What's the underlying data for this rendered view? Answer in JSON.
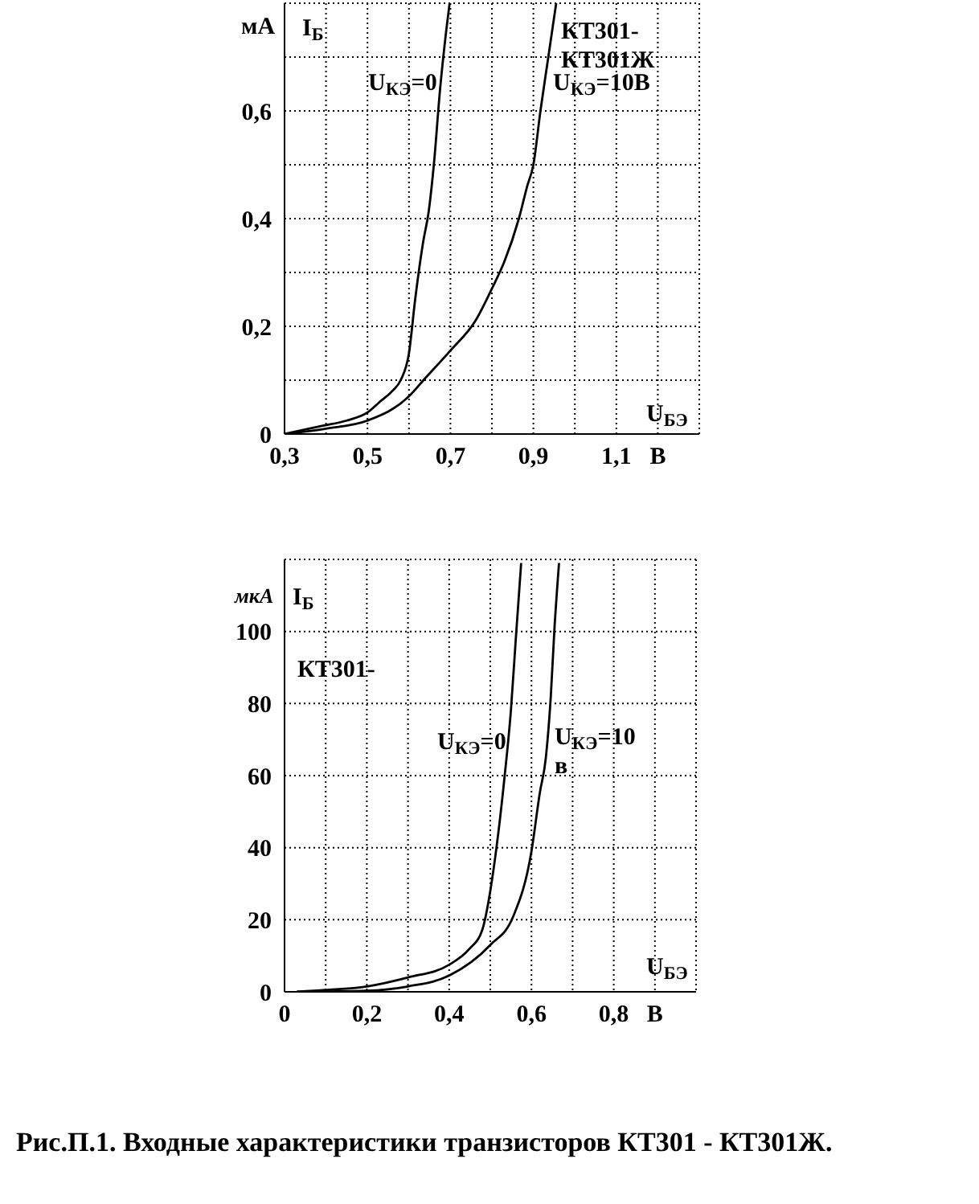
{
  "chart_data": [
    {
      "type": "line",
      "xlabel": "U$_{БЭ}$",
      "ylabel": "I$_{Б}$",
      "annotations": [
        "мА",
        "КТ301-\nКТ301Ж"
      ],
      "xlim": [
        0.3,
        1.3
      ],
      "ylim": [
        0,
        0.8
      ],
      "xticks": [
        {
          "value": 0.3,
          "label": "0,3"
        },
        {
          "value": 0.4,
          "label": null
        },
        {
          "value": 0.5,
          "label": "0,5"
        },
        {
          "value": 0.6,
          "label": null
        },
        {
          "value": 0.7,
          "label": "0,7"
        },
        {
          "value": 0.8,
          "label": null
        },
        {
          "value": 0.9,
          "label": "0,9"
        },
        {
          "value": 1.0,
          "label": null
        },
        {
          "value": 1.1,
          "label": "1,1"
        },
        {
          "value": 1.2,
          "label": "В"
        },
        {
          "value": 1.3,
          "label": null
        }
      ],
      "yticks": [
        0,
        {
          "value": 0.1,
          "label": null
        },
        {
          "value": 0.2,
          "label": "0,2"
        },
        {
          "value": 0.3,
          "label": null
        },
        {
          "value": 0.4,
          "label": "0,4"
        },
        {
          "value": 0.5,
          "label": null
        },
        {
          "value": 0.6,
          "label": "0,6"
        },
        {
          "value": 0.7,
          "label": null
        },
        {
          "value": 0.8,
          "label": null
        }
      ],
      "grid": true,
      "marker": "none",
      "series": [
        {
          "name": "U$_{КЭ}$=0",
          "color": "#000000",
          "x": [
            0.3,
            0.39,
            0.45,
            0.5,
            0.53,
            0.56,
            0.58,
            0.6,
            0.615,
            0.635,
            0.647,
            0.66,
            0.675,
            0.69,
            0.698
          ],
          "values": [
            0,
            0.015,
            0.025,
            0.04,
            0.06,
            0.08,
            0.1,
            0.15,
            0.25,
            0.36,
            0.41,
            0.5,
            0.64,
            0.75,
            0.8
          ]
        },
        {
          "name": "U$_{КЭ}$=10В",
          "color": "#000000",
          "x": [
            0.3,
            0.4,
            0.5,
            0.6,
            0.635,
            0.7,
            0.76,
            0.8,
            0.83,
            0.865,
            0.885,
            0.9,
            0.917,
            0.936,
            0.955
          ],
          "values": [
            0,
            0.01,
            0.025,
            0.07,
            0.1,
            0.155,
            0.21,
            0.27,
            0.32,
            0.4,
            0.46,
            0.5,
            0.6,
            0.7,
            0.8
          ]
        }
      ]
    },
    {
      "type": "line",
      "xlabel": "U$_{БЭ}$",
      "ylabel": "I$_{Б}$",
      "annotations": [
        "мкА",
        "КТ301-",
        "Рис.П.1. Входные характеристики транзисторов КТ301 - КТ301Ж."
      ],
      "xlim": [
        0,
        1.0
      ],
      "ylim": [
        0,
        120
      ],
      "xticks": [
        0,
        {
          "value": 0.1,
          "label": null
        },
        {
          "value": 0.2,
          "label": "0,2"
        },
        {
          "value": 0.3,
          "label": null
        },
        {
          "value": 0.4,
          "label": "0,4"
        },
        {
          "value": 0.5,
          "label": null
        },
        {
          "value": 0.6,
          "label": "0,6"
        },
        {
          "value": 0.7,
          "label": null
        },
        {
          "value": 0.8,
          "label": "0,8"
        },
        {
          "value": 0.9,
          "label": "В"
        },
        {
          "value": 1.0,
          "label": null
        }
      ],
      "yticks": [
        0,
        20,
        40,
        60,
        80,
        100,
        {
          "value": 120,
          "label": null
        }
      ],
      "grid": true,
      "marker": "none",
      "series": [
        {
          "name": "U$_{КЭ}$=0",
          "color": "#000000",
          "x": [
            0.03,
            0.1,
            0.2,
            0.3,
            0.4,
            0.45,
            0.48,
            0.5,
            0.515,
            0.535,
            0.55,
            0.562,
            0.575
          ],
          "values": [
            0,
            0.5,
            1.5,
            4,
            7.5,
            12,
            17,
            28,
            40,
            60,
            78,
            98,
            119
          ]
        },
        {
          "name": "U$_{КЭ}$=10 в",
          "color": "#000000",
          "x": [
            0.03,
            0.2,
            0.3,
            0.4,
            0.5,
            0.556,
            0.6,
            0.62,
            0.635,
            0.647,
            0.656,
            0.667
          ],
          "values": [
            0,
            0.3,
            1.5,
            4.5,
            13,
            21,
            39,
            55,
            65,
            82,
            101,
            119
          ]
        }
      ]
    }
  ]
}
